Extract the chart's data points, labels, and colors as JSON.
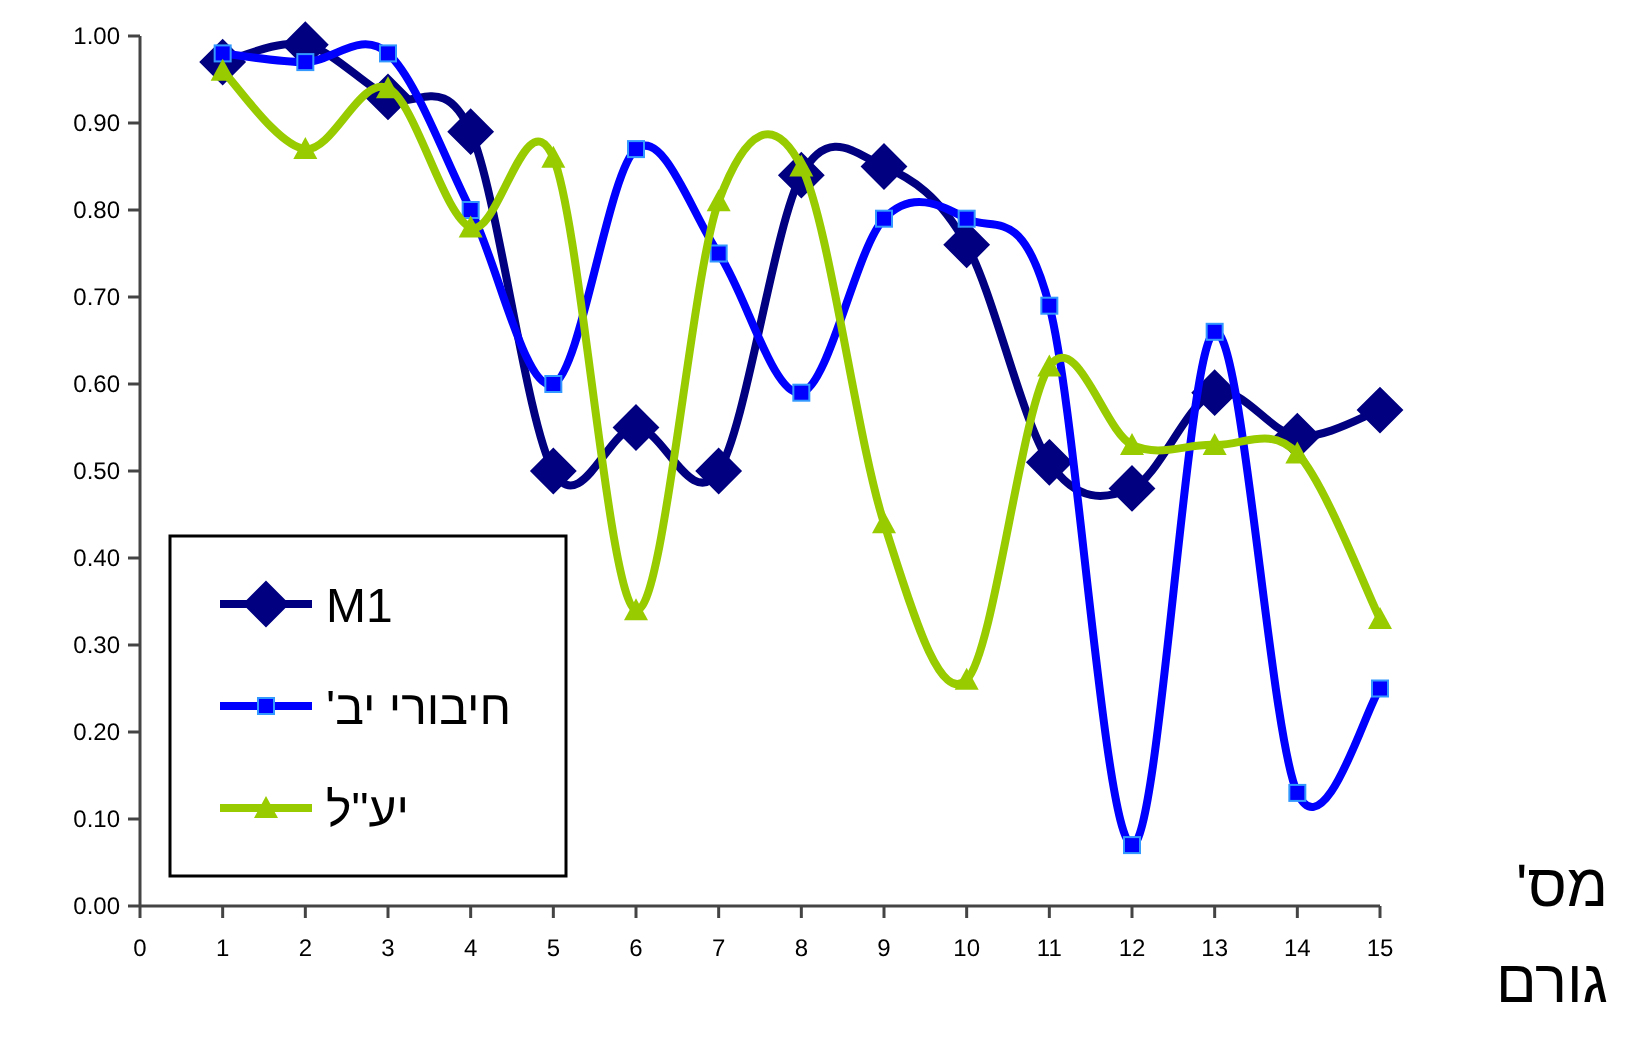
{
  "chart_data": {
    "type": "line",
    "xlabel": "מס' גורם",
    "x": [
      1,
      2,
      3,
      4,
      5,
      6,
      7,
      8,
      9,
      10,
      11,
      12,
      13,
      14,
      15
    ],
    "series": [
      {
        "name": "M1",
        "color": "#000080",
        "marker": "diamond",
        "values": [
          0.97,
          0.99,
          0.93,
          0.89,
          0.5,
          0.55,
          0.5,
          0.84,
          0.85,
          0.76,
          0.51,
          0.48,
          0.59,
          0.54,
          0.57
        ]
      },
      {
        "name": "חיבורי יב'",
        "color": "#0000ff",
        "marker": "square",
        "values": [
          0.98,
          0.97,
          0.98,
          0.8,
          0.6,
          0.87,
          0.75,
          0.59,
          0.79,
          0.79,
          0.69,
          0.07,
          0.66,
          0.13,
          0.25
        ]
      },
      {
        "name": "יע\"ל",
        "color": "#99cc00",
        "marker": "triangle",
        "values": [
          0.96,
          0.87,
          0.94,
          0.78,
          0.86,
          0.34,
          0.81,
          0.85,
          0.44,
          0.26,
          0.62,
          0.53,
          0.53,
          0.52,
          0.33
        ]
      }
    ],
    "xlim": [
      0,
      15
    ],
    "ylim": [
      0,
      1
    ],
    "xticks": [
      0,
      1,
      2,
      3,
      4,
      5,
      6,
      7,
      8,
      9,
      10,
      11,
      12,
      13,
      14,
      15
    ],
    "yticks": [
      {
        "value": 0,
        "label": "0.00"
      },
      {
        "value": 0.1,
        "label": "0.10"
      },
      {
        "value": 0.2,
        "label": "0.20"
      },
      {
        "value": 0.3,
        "label": "0.30"
      },
      {
        "value": 0.4,
        "label": "0.40"
      },
      {
        "value": 0.5,
        "label": "0.50"
      },
      {
        "value": 0.6,
        "label": "0.60"
      },
      {
        "value": 0.7,
        "label": "0.70"
      },
      {
        "value": 0.8,
        "label": "0.80"
      },
      {
        "value": 0.9,
        "label": "0.90"
      },
      {
        "value": 1,
        "label": "1.00"
      }
    ],
    "grid": false,
    "legend": "bottom left"
  }
}
